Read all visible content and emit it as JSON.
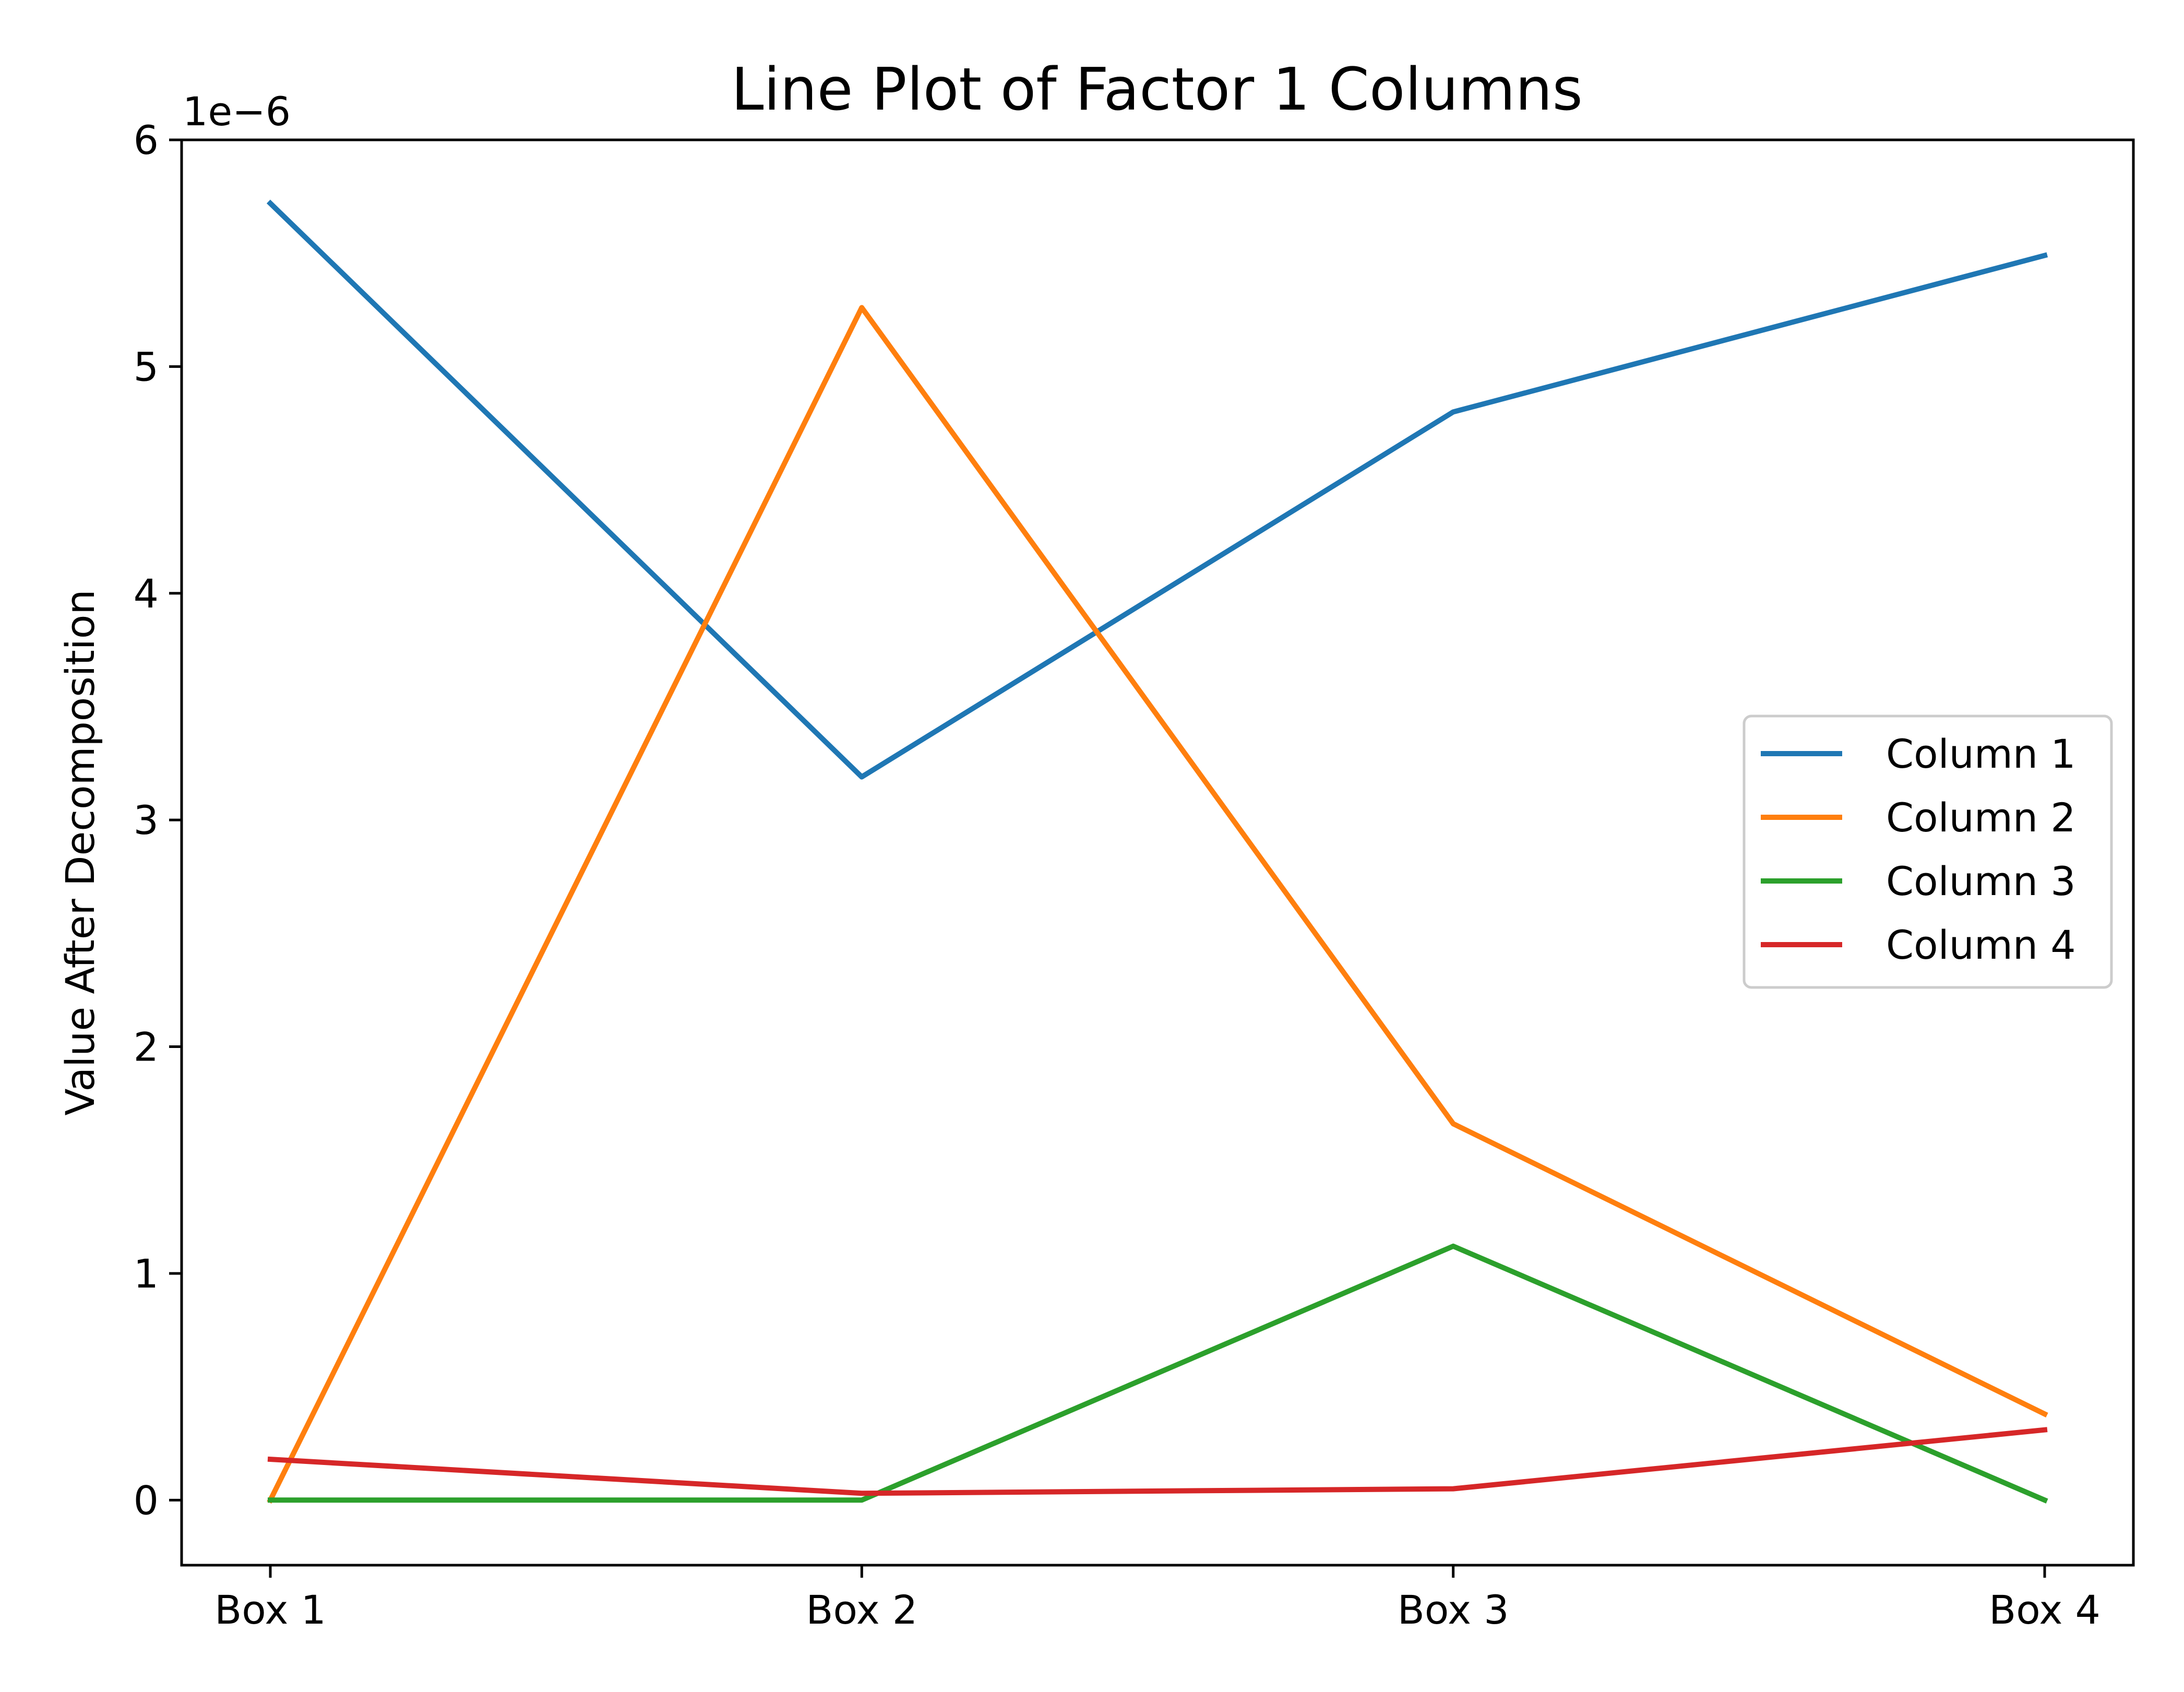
{
  "chart_data": {
    "type": "line",
    "title": "Line Plot of Factor 1 Columns",
    "xlabel": "",
    "ylabel": "Value After Decomposition",
    "scale_label": "1e−6",
    "categories": [
      "Box 1",
      "Box 2",
      "Box 3",
      "Box 4"
    ],
    "yticks": [
      0,
      1,
      2,
      3,
      4,
      5,
      6
    ],
    "ylim": [
      -0.287,
      6.0
    ],
    "grid": false,
    "legend_position": "center-right",
    "series": [
      {
        "name": "Column 1",
        "color": "#1f77b4",
        "values": [
          5.72,
          3.19,
          4.8,
          5.49
        ]
      },
      {
        "name": "Column 2",
        "color": "#ff7f0e",
        "values": [
          0.0,
          5.26,
          1.66,
          0.38
        ]
      },
      {
        "name": "Column 3",
        "color": "#2ca02c",
        "values": [
          0.0,
          0.0,
          1.12,
          0.0
        ]
      },
      {
        "name": "Column 4",
        "color": "#d62728",
        "values": [
          0.18,
          0.03,
          0.05,
          0.31
        ]
      }
    ]
  }
}
